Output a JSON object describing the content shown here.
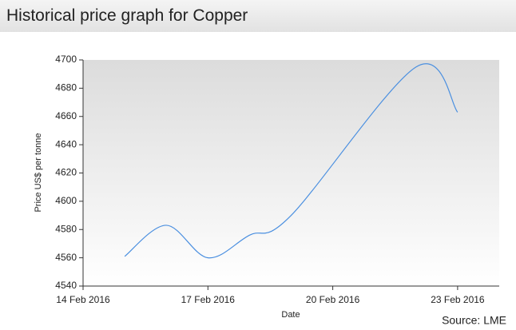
{
  "header": {
    "title": "Historical price graph for Copper"
  },
  "chart_data": {
    "type": "line",
    "x": [
      "2016-02-15",
      "2016-02-16",
      "2016-02-17",
      "2016-02-18",
      "2016-02-19",
      "2016-02-22",
      "2016-02-23"
    ],
    "series": [
      {
        "name": "Copper",
        "color": "#4a8fe0",
        "values": [
          4561,
          4583,
          4560,
          4576,
          4590,
          4695,
          4663
        ]
      }
    ],
    "xlim": [
      "2016-02-14",
      "2016-02-24"
    ],
    "xticks": [
      {
        "value": "2016-02-14",
        "label": "14 Feb 2016"
      },
      {
        "value": "2016-02-17",
        "label": "17 Feb 2016"
      },
      {
        "value": "2016-02-20",
        "label": "20 Feb 2016"
      },
      {
        "value": "2016-02-23",
        "label": "23 Feb 2016"
      }
    ],
    "ylim": [
      4540,
      4700
    ],
    "yticks": [
      4540,
      4560,
      4580,
      4600,
      4620,
      4640,
      4660,
      4680,
      4700
    ],
    "xlabel": "Date",
    "ylabel": "Price US$ per tonne",
    "source": "Source: LME"
  }
}
